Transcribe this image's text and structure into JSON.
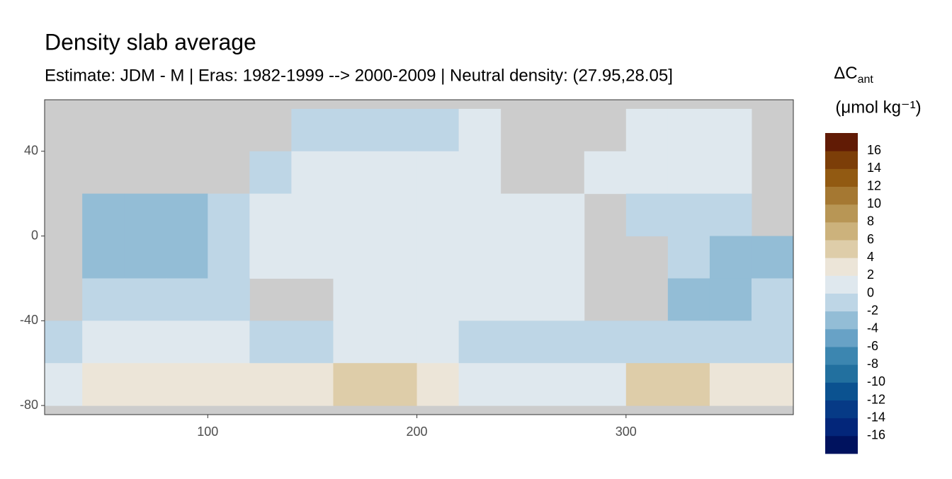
{
  "chart_data": {
    "type": "heatmap",
    "title": "Density slab average",
    "subtitle": "Estimate: JDM - M | Eras: 1982-1999 --> 2000-2009 | Neutral density: (27.95,28.05]",
    "x": [
      30,
      50,
      70,
      90,
      110,
      130,
      150,
      170,
      190,
      210,
      230,
      250,
      270,
      290,
      310,
      330,
      350,
      370
    ],
    "y": [
      50,
      30,
      10,
      -10,
      -30,
      -50,
      -70
    ],
    "z": [
      [
        null,
        null,
        null,
        null,
        null,
        null,
        -1,
        -1,
        -1,
        -1,
        1,
        null,
        null,
        null,
        1,
        1,
        1,
        null
      ],
      [
        null,
        null,
        null,
        null,
        null,
        -1,
        1,
        1,
        1,
        1,
        1,
        null,
        null,
        1,
        1,
        1,
        1,
        null
      ],
      [
        null,
        -3,
        -3,
        -3,
        -1,
        1,
        1,
        1,
        1,
        1,
        1,
        1,
        1,
        null,
        -1,
        -1,
        -1,
        null
      ],
      [
        null,
        -3,
        -3,
        -3,
        -1,
        1,
        1,
        1,
        1,
        1,
        1,
        1,
        1,
        null,
        null,
        -1,
        -3,
        -3
      ],
      [
        null,
        -1,
        -1,
        -1,
        -1,
        null,
        null,
        1,
        1,
        1,
        1,
        1,
        1,
        null,
        null,
        -3,
        -3,
        -1
      ],
      [
        -1,
        1,
        1,
        1,
        1,
        -1,
        -1,
        1,
        1,
        1,
        -1,
        -1,
        -1,
        -1,
        -1,
        -1,
        -1,
        -1
      ],
      [
        1,
        3,
        3,
        3,
        3,
        3,
        3,
        5,
        5,
        3,
        1,
        1,
        1,
        1,
        5,
        5,
        3,
        3
      ]
    ],
    "xlim": [
      22,
      380
    ],
    "ylim": [
      -84.3,
      64.3
    ],
    "xticks": [
      100,
      200,
      300
    ],
    "yticks": [
      40,
      0,
      -40,
      -80
    ],
    "land_color": "#cccccc",
    "legend": {
      "title": "ΔC",
      "title_sub": "ant",
      "unit": "(μmol kg⁻¹)",
      "lim": [
        -18,
        18
      ],
      "breaks": [
        -16,
        -14,
        -12,
        -10,
        -8,
        -6,
        -4,
        -2,
        0,
        2,
        4,
        6,
        8,
        10,
        12,
        14,
        16
      ],
      "colors": [
        "#00125e",
        "#03267a",
        "#063a86",
        "#0b5290",
        "#22709f",
        "#3c86b0",
        "#68a2c6",
        "#93bdd6",
        "#bed6e6",
        "#dfe8ee",
        "#ece5d8",
        "#decda9",
        "#ccb27c",
        "#b89655",
        "#a57832",
        "#925a12",
        "#7c3e08",
        "#611b05"
      ]
    }
  }
}
